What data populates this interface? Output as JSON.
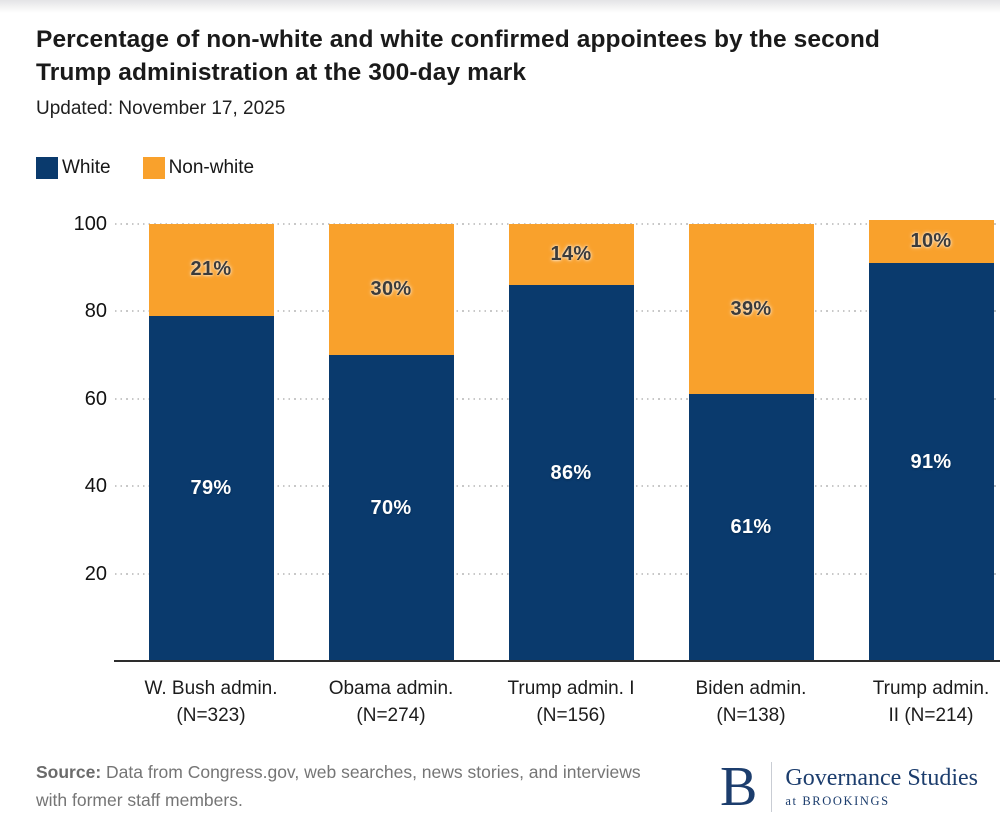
{
  "page": {
    "title": "Percentage of non-white and white confirmed appointees by the second Trump administration at the 300-day mark",
    "updated": "Updated: November 17, 2025"
  },
  "colors": {
    "white_series": "#0a3a6d",
    "nonwhite_series": "#f9a12c",
    "logo_navy": "#1c3d6d"
  },
  "legend": [
    {
      "label": "White",
      "color": "#0a3a6d"
    },
    {
      "label": "Non-white",
      "color": "#f9a12c"
    }
  ],
  "chart_data": {
    "type": "bar",
    "stacked": true,
    "categories": [
      {
        "line1": "W. Bush admin.",
        "line2": "(N=323)"
      },
      {
        "line1": "Obama admin.",
        "line2": "(N=274)"
      },
      {
        "line1": "Trump admin. I",
        "line2": "(N=156)"
      },
      {
        "line1": "Biden admin.",
        "line2": "(N=138)"
      },
      {
        "line1": "Trump admin.",
        "line2": "II (N=214)"
      }
    ],
    "series": [
      {
        "name": "White",
        "color": "#0a3a6d",
        "label_color": "#ffffff",
        "values": [
          79,
          70,
          86,
          61,
          91
        ]
      },
      {
        "name": "Non-white",
        "color": "#f9a12c",
        "label_color": "#3b3b3b",
        "values": [
          21,
          30,
          14,
          39,
          10
        ]
      }
    ],
    "value_suffix": "%",
    "yticks": [
      20,
      40,
      60,
      80,
      100
    ],
    "ylim": [
      0,
      101
    ],
    "grid": "dotted horizontal",
    "legend_position": "top-left"
  },
  "footer": {
    "source_bold": "Source:",
    "source_text": " Data from Congress.gov, web searches, news stories, and interviews with former staff members.",
    "logo": {
      "b": "B",
      "name": "Governance Studies",
      "sub": "at BROOKINGS"
    }
  }
}
